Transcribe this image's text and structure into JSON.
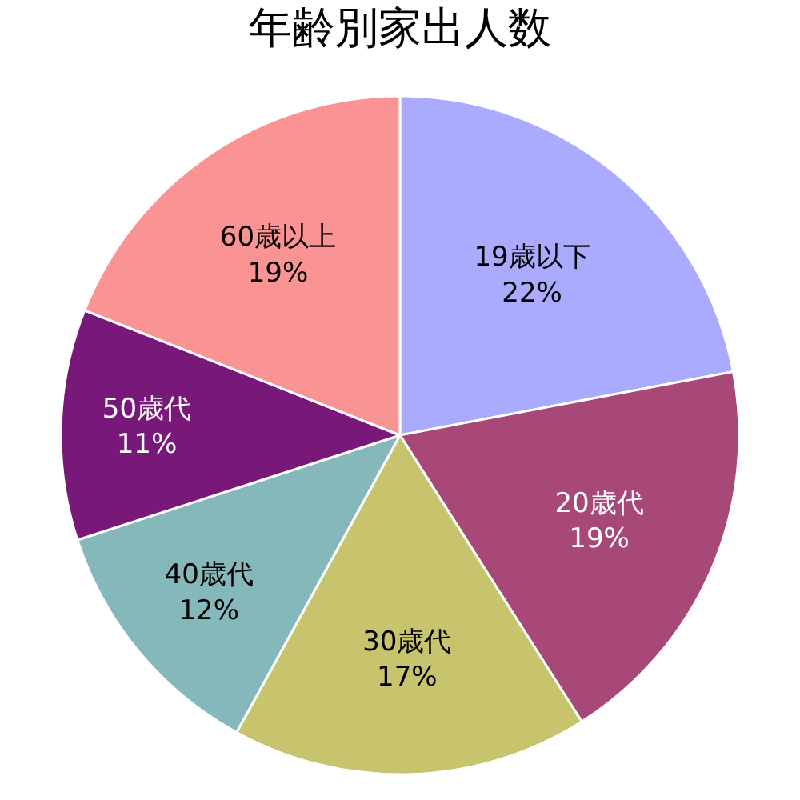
{
  "chart_data": {
    "type": "pie",
    "title": "年齢別家出人数",
    "categories": [
      "19歳以下",
      "20歳代",
      "30歳代",
      "40歳代",
      "50歳代",
      "60歳以上"
    ],
    "values": [
      22,
      19,
      17,
      12,
      11,
      19
    ],
    "value_labels": [
      "22%",
      "19%",
      "17%",
      "12%",
      "11%",
      "19%"
    ],
    "colors": [
      "#aaaaff",
      "#a84878",
      "#c8c46e",
      "#84b8ba",
      "#781878",
      "#fa9494"
    ]
  }
}
